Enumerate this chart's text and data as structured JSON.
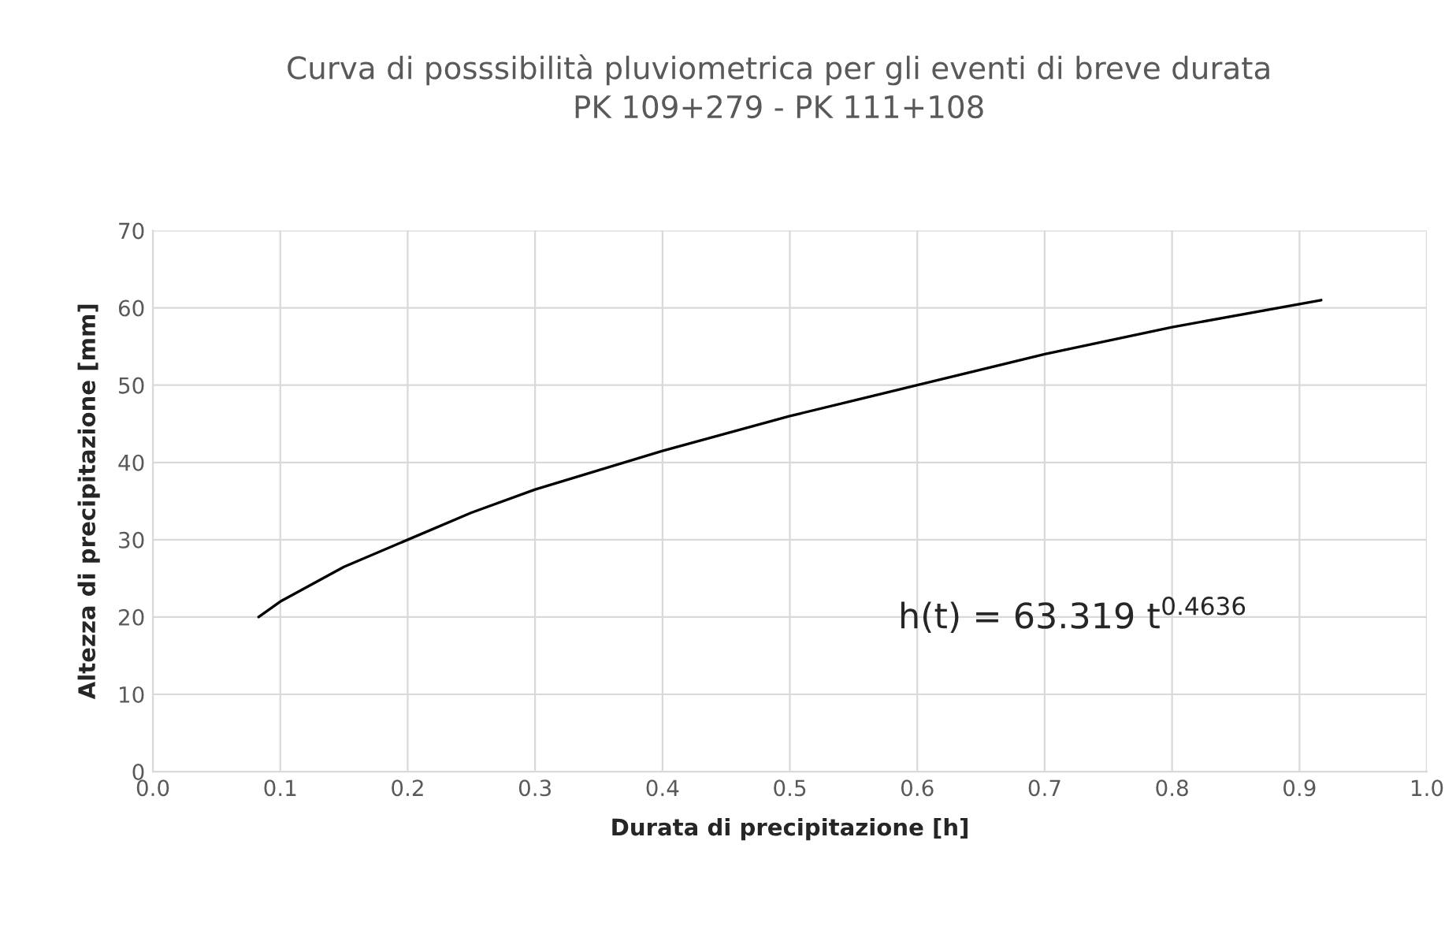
{
  "chart_data": {
    "type": "line",
    "title": "Curva di posssibilità pluviometrica per gli eventi di breve durata\nPK 109+279 - PK 111+108",
    "xlabel": "Durata di precipitazione [h]",
    "ylabel": "Altezza di precipitazione [mm]",
    "x": [
      0.083,
      0.1,
      0.15,
      0.2,
      0.25,
      0.3,
      0.35,
      0.4,
      0.5,
      0.6,
      0.7,
      0.8,
      0.917
    ],
    "series": [
      {
        "color": "#000000",
        "values": [
          20,
          22,
          26.5,
          30,
          33.5,
          36.5,
          39,
          41.5,
          46,
          50,
          54,
          57.5,
          61
        ]
      }
    ],
    "xlim": [
      0.0,
      1.0
    ],
    "xticks": [
      {
        "value": 0.0,
        "label": "0.0"
      },
      {
        "value": 0.1,
        "label": "0.1"
      },
      {
        "value": 0.2,
        "label": "0.2"
      },
      {
        "value": 0.3,
        "label": "0.3"
      },
      {
        "value": 0.4,
        "label": "0.4"
      },
      {
        "value": 0.5,
        "label": "0.5"
      },
      {
        "value": 0.6,
        "label": "0.6"
      },
      {
        "value": 0.7,
        "label": "0.7"
      },
      {
        "value": 0.8,
        "label": "0.8"
      },
      {
        "value": 0.9,
        "label": "0.9"
      },
      {
        "value": 1.0,
        "label": "1.0"
      }
    ],
    "ylim": [
      0,
      70
    ],
    "yticks": [
      0,
      10,
      20,
      30,
      40,
      50,
      60,
      70
    ],
    "grid": true,
    "marker": "none",
    "line_style": "solid",
    "annotations": [
      "h(t) = 63.319 t$^{0.4636}$"
    ]
  }
}
